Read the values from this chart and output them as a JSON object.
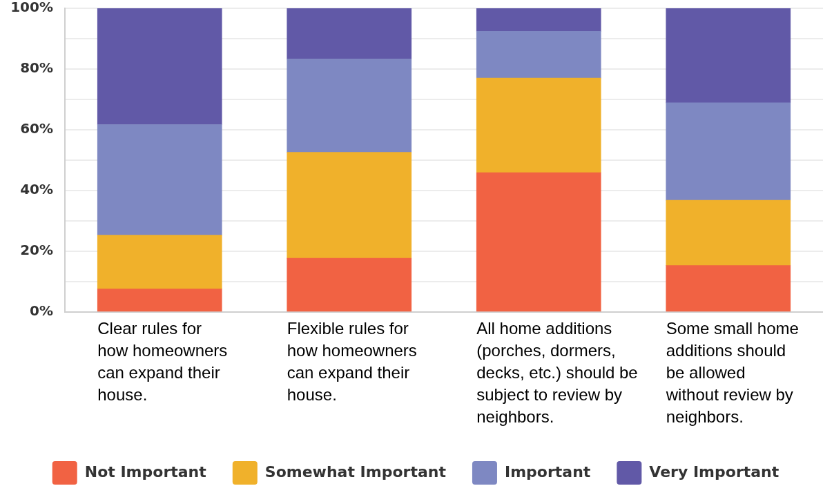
{
  "chart_data": {
    "type": "bar",
    "stacked": true,
    "categories": [
      "Clear rules for how homeowners can expand their house.",
      "Flexible rules for how homeowners can expand their house.",
      "All home additions (porches, dormers, decks, etc.) should be subject to review by neighbors.",
      "Some small home additions should be allowed without review by neighbors."
    ],
    "series": [
      {
        "name": "Not Important",
        "color": "#f16243",
        "values": [
          7.6,
          17.7,
          45.9,
          15.3
        ]
      },
      {
        "name": "Somewhat Important",
        "color": "#f0b12b",
        "values": [
          17.7,
          34.9,
          31.1,
          21.5
        ]
      },
      {
        "name": "Important",
        "color": "#7e88c2",
        "values": [
          36.4,
          30.7,
          15.4,
          32.1
        ]
      },
      {
        "name": "Very Important",
        "color": "#6159a7",
        "values": [
          38.3,
          16.7,
          7.6,
          31.1
        ]
      }
    ],
    "ylim": [
      0,
      100
    ],
    "yticks": [
      {
        "value": 0,
        "label": "0%"
      },
      {
        "value": 10,
        "label": null
      },
      {
        "value": 20,
        "label": "20%"
      },
      {
        "value": 30,
        "label": null
      },
      {
        "value": 40,
        "label": "40%"
      },
      {
        "value": 50,
        "label": null
      },
      {
        "value": 60,
        "label": "60%"
      },
      {
        "value": 70,
        "label": null
      },
      {
        "value": 80,
        "label": "80%"
      },
      {
        "value": 90,
        "label": null
      },
      {
        "value": 100,
        "label": "100%"
      }
    ],
    "grid": "y",
    "legend": "bottom"
  }
}
